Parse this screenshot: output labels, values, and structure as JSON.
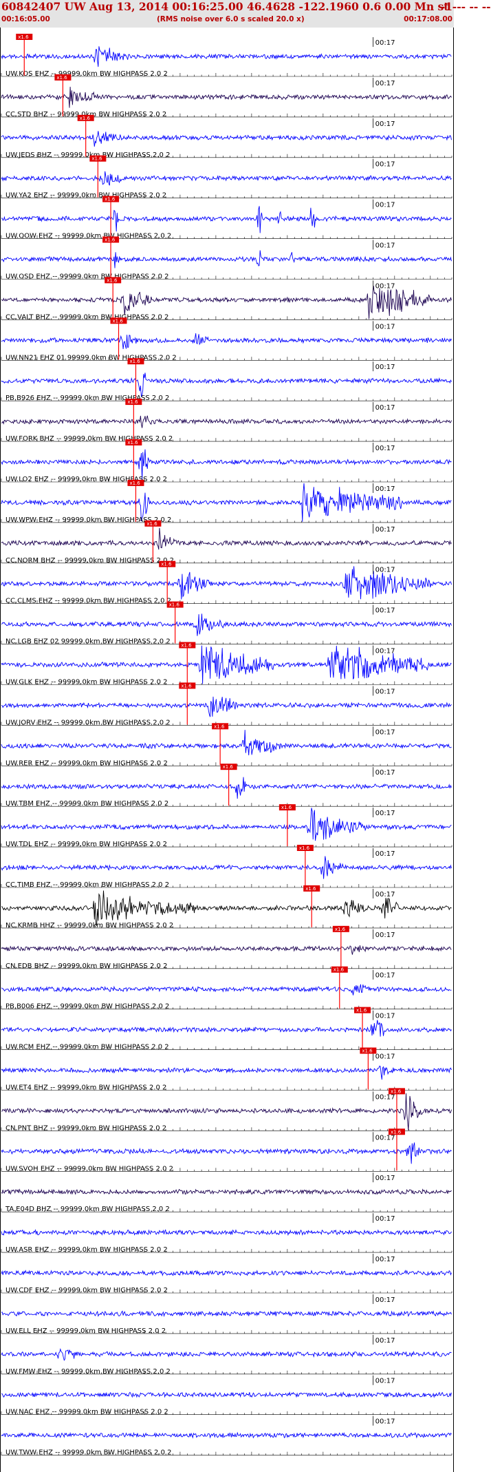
{
  "header": {
    "title": "60842407 UW Aug 13, 2014 00:16:25.00   46.4628 -122.1960  0.6 0.00 Mn st --- -- --",
    "right_mark": "-1",
    "start_time": "00:16:05.00",
    "subtitle": "(RMS noise over 6.0 s scaled 20.0 x)",
    "end_time": "00:17:08.00"
  },
  "colors": {
    "title": "#b80000",
    "trace_blue": "#0000ff",
    "trace_dark": "#1a0050",
    "trace_black": "#000000",
    "pick": "#ff0000",
    "pick_box": "#e00000"
  },
  "chart_data": {
    "type": "seismogram",
    "title": "60842407 UW Aug 13, 2014 00:16:25.00",
    "time_range": [
      "00:16:05.00",
      "00:17:08.00"
    ],
    "tick_time_label": "00:17",
    "pick_label": "x1.6",
    "traces": [
      {
        "label": "UW.KOS EHZ -- 99999.0km BW  HIGHPASS  2.0  2",
        "color": "#0000ff",
        "pick_time_s": 3.2,
        "events": [
          {
            "t": 13,
            "amp": 0.5,
            "dur": 5
          }
        ]
      },
      {
        "label": "CC.STD BHZ -- 99999.0km BW  HIGHPASS  2.0  2",
        "color": "#1a0050",
        "pick_time_s": 8.6,
        "events": [
          {
            "t": 9.5,
            "amp": 0.4,
            "dur": 4
          }
        ]
      },
      {
        "label": "UW.JEDS BHZ -- 99999.0km BW  HIGHPASS  2.0  2",
        "color": "#0000ff",
        "pick_time_s": 11.8,
        "events": [
          {
            "t": 13,
            "amp": 0.3,
            "dur": 4
          }
        ]
      },
      {
        "label": "UW.YA2 EHZ -- 99999.0km BW  HIGHPASS  2.0  2",
        "color": "#0000ff",
        "pick_time_s": 13.5,
        "events": [
          {
            "t": 14,
            "amp": 0.4,
            "dur": 3
          }
        ]
      },
      {
        "label": "UW.OOW EHZ -- 99999.0km BW  HIGHPASS  2.0  2",
        "color": "#0000ff",
        "pick_time_s": 15.3,
        "events": [
          {
            "t": 16,
            "amp": 1.0,
            "dur": 0.5
          },
          {
            "t": 36,
            "amp": 1.0,
            "dur": 0.4
          },
          {
            "t": 39,
            "amp": 1.0,
            "dur": 0.4
          },
          {
            "t": 43.5,
            "amp": 1.0,
            "dur": 0.4
          }
        ]
      },
      {
        "label": "UW.OSD EHZ -- 99999.0km BW  HIGHPASS  2.0  2",
        "color": "#0000ff",
        "pick_time_s": 15.3,
        "events": [
          {
            "t": 16,
            "amp": 1.0,
            "dur": 0.6
          },
          {
            "t": 36,
            "amp": 1.0,
            "dur": 0.5
          },
          {
            "t": 40.5,
            "amp": 1.0,
            "dur": 0.5
          }
        ]
      },
      {
        "label": "CC.VALT BHZ -- 99999.0km BW  HIGHPASS  2.0  2",
        "color": "#1a0050",
        "pick_time_s": 15.6,
        "events": [
          {
            "t": 17,
            "amp": 0.6,
            "dur": 4
          },
          {
            "t": 51,
            "amp": 1.0,
            "dur": 9
          }
        ]
      },
      {
        "label": "UW.NN21 EHZ 01 99999.0km BW  HIGHPASS  2.0  2",
        "color": "#0000ff",
        "pick_time_s": 16.4,
        "events": [
          {
            "t": 17,
            "amp": 0.4,
            "dur": 2
          },
          {
            "t": 27,
            "amp": 0.5,
            "dur": 2
          }
        ]
      },
      {
        "label": "PB.B926 EHZ -- 99999.0km BW  HIGHPASS  2.0  2",
        "color": "#0000ff",
        "pick_time_s": 18.8,
        "events": [
          {
            "t": 19.5,
            "amp": 1.0,
            "dur": 0.8
          }
        ]
      },
      {
        "label": "UW.FORK BHZ -- 99999.0km BW  HIGHPASS  2.0  2",
        "color": "#1a0050",
        "pick_time_s": 18.5,
        "events": [
          {
            "t": 19.5,
            "amp": 0.5,
            "dur": 1.5
          }
        ]
      },
      {
        "label": "UW.LO2 EHZ -- 99999.0km BW  HIGHPASS  2.0  2",
        "color": "#0000ff",
        "pick_time_s": 18.5,
        "events": [
          {
            "t": 19.5,
            "amp": 1.0,
            "dur": 1.2
          }
        ]
      },
      {
        "label": "UW.WPW EHZ -- 99999.0km BW  HIGHPASS  2.0  2",
        "color": "#0000ff",
        "pick_time_s": 18.8,
        "events": [
          {
            "t": 19.5,
            "amp": 1.0,
            "dur": 1.2
          },
          {
            "t": 42,
            "amp": 1.0,
            "dur": 14
          }
        ]
      },
      {
        "label": "CC.NORM BHZ -- 99999.0km BW  HIGHPASS  2.0  2",
        "color": "#1a0050",
        "pick_time_s": 21.2,
        "events": [
          {
            "t": 22,
            "amp": 0.5,
            "dur": 3
          }
        ]
      },
      {
        "label": "CC.CLMS EHZ -- 99999.0km BW  HIGHPASS  2.0  2",
        "color": "#0000ff",
        "pick_time_s": 23.2,
        "events": [
          {
            "t": 25,
            "amp": 0.7,
            "dur": 4
          },
          {
            "t": 48,
            "amp": 0.9,
            "dur": 12
          }
        ]
      },
      {
        "label": "NC.LGB EHZ 02 99999.0km BW  HIGHPASS  2.0  2",
        "color": "#0000ff",
        "pick_time_s": 24.3,
        "events": [
          {
            "t": 27,
            "amp": 0.5,
            "dur": 4
          }
        ]
      },
      {
        "label": "UW.GLK EHZ -- 99999.0km BW  HIGHPASS  2.0  2",
        "color": "#0000ff",
        "pick_time_s": 26.0,
        "events": [
          {
            "t": 28,
            "amp": 1.0,
            "dur": 10
          },
          {
            "t": 46,
            "amp": 1.0,
            "dur": 14
          }
        ]
      },
      {
        "label": "UW.JORV EHZ -- 99999.0km BW  HIGHPASS  2.0  2",
        "color": "#0000ff",
        "pick_time_s": 26.0,
        "events": [
          {
            "t": 29,
            "amp": 0.8,
            "dur": 4
          }
        ]
      },
      {
        "label": "UW.RER EHZ -- 99999.0km BW  HIGHPASS  2.0  2",
        "color": "#0000ff",
        "pick_time_s": 30.6,
        "events": [
          {
            "t": 34,
            "amp": 0.7,
            "dur": 5
          }
        ]
      },
      {
        "label": "UW.TBM EHZ -- 99999.0km BW  HIGHPASS  2.0  2",
        "color": "#0000ff",
        "pick_time_s": 31.8,
        "events": [
          {
            "t": 33,
            "amp": 1.0,
            "dur": 1.2
          }
        ]
      },
      {
        "label": "UW.TDL EHZ -- 99999.0km BW  HIGHPASS  2.0  2",
        "color": "#0000ff",
        "pick_time_s": 40.0,
        "events": [
          {
            "t": 43,
            "amp": 0.7,
            "dur": 8
          }
        ]
      },
      {
        "label": "CC.TIMB EHZ -- 99999.0km BW  HIGHPASS  2.0  2",
        "color": "#0000ff",
        "pick_time_s": 42.5,
        "events": [
          {
            "t": 45,
            "amp": 0.5,
            "dur": 3
          }
        ]
      },
      {
        "label": "NC.KRMB HHZ -- 99999.0km BW  HIGHPASS  2.0  2",
        "color": "#000000",
        "pick_time_s": 43.4,
        "events": [
          {
            "t": 13,
            "amp": 0.7,
            "dur": 14
          },
          {
            "t": 53.5,
            "amp": 1.0,
            "dur": 2
          },
          {
            "t": 48,
            "amp": 0.6,
            "dur": 3
          }
        ]
      },
      {
        "label": "CN.EDB BHZ -- 99999.0km BW  HIGHPASS  2.0  2",
        "color": "#1a0050",
        "pick_time_s": 47.5,
        "events": [
          {
            "t": 49,
            "amp": 0.2,
            "dur": 2
          }
        ]
      },
      {
        "label": "PB.B006 EHZ -- 99999.0km BW  HIGHPASS  2.0  2",
        "color": "#0000ff",
        "pick_time_s": 47.3,
        "events": [
          {
            "t": 49,
            "amp": 0.4,
            "dur": 2
          }
        ]
      },
      {
        "label": "UW.RCM EHZ -- 99999.0km BW  HIGHPASS  2.0  2",
        "color": "#0000ff",
        "pick_time_s": 50.5,
        "events": [
          {
            "t": 52,
            "amp": 0.9,
            "dur": 1.5
          }
        ]
      },
      {
        "label": "UW.ET4 EHZ -- 99999.0km BW  HIGHPASS  2.0  2",
        "color": "#0000ff",
        "pick_time_s": 51.3,
        "events": [
          {
            "t": 53,
            "amp": 0.4,
            "dur": 2
          }
        ]
      },
      {
        "label": "CN.PNT BHZ -- 99999.0km BW  HIGHPASS  2.0  2",
        "color": "#1a0050",
        "pick_time_s": 55.3,
        "events": [
          {
            "t": 56.5,
            "amp": 1.0,
            "dur": 2.5
          }
        ]
      },
      {
        "label": "UW.SVOH EHZ -- 99999.0km BW  HIGHPASS  2.0  2",
        "color": "#0000ff",
        "pick_time_s": 55.3,
        "events": [
          {
            "t": 57,
            "amp": 0.8,
            "dur": 1.5
          }
        ]
      },
      {
        "label": "TA.E04D BHZ -- 99999.0km BW  HIGHPASS  2.0  2",
        "color": "#1a0050",
        "pick_time_s": null,
        "events": []
      },
      {
        "label": "UW.ASR EHZ -- 99999.0km BW  HIGHPASS  2.0  2",
        "color": "#0000ff",
        "pick_time_s": null,
        "events": []
      },
      {
        "label": "UW.CDF EHZ -- 99999.0km BW  HIGHPASS  2.0  2",
        "color": "#0000ff",
        "pick_time_s": null,
        "events": []
      },
      {
        "label": "UW.ELL EHZ -- 99999.0km BW  HIGHPASS  2.0  2",
        "color": "#0000ff",
        "pick_time_s": null,
        "events": []
      },
      {
        "label": "UW.FMW EHZ -- 99999.0km BW  HIGHPASS  2.0  2",
        "color": "#0000ff",
        "pick_time_s": null,
        "events": [
          {
            "t": 8,
            "amp": 0.3,
            "dur": 3
          }
        ]
      },
      {
        "label": "UW.NAC EHZ -- 99999.0km BW  HIGHPASS  2.0  2",
        "color": "#0000ff",
        "pick_time_s": null,
        "events": []
      },
      {
        "label": "UW.TWW EHZ -- 99999.0km BW  HIGHPASS  2.0  2",
        "color": "#0000ff",
        "pick_time_s": null,
        "events": []
      }
    ]
  }
}
